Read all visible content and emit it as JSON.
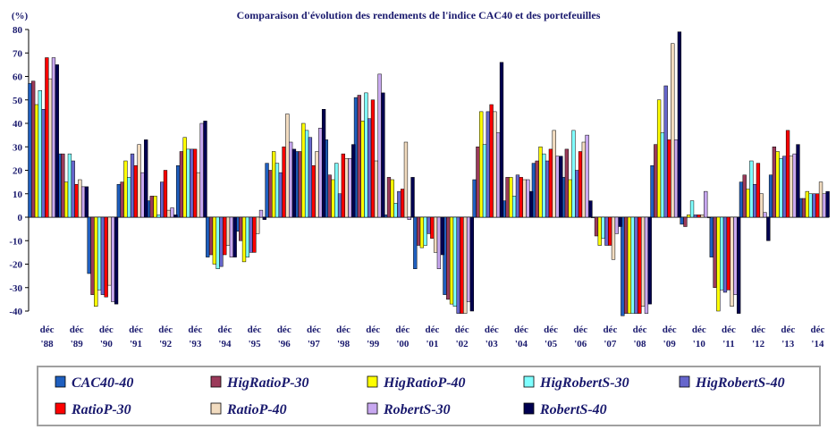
{
  "chart_data": {
    "type": "bar",
    "title": "Comparaison d'évolution des rendements de l'indice CAC40 et des portefeuilles",
    "ylabel": "(%)",
    "ylim": [
      -40,
      80
    ],
    "yticks": [
      80,
      70,
      60,
      50,
      40,
      30,
      20,
      10,
      0,
      -10,
      -20,
      -30,
      -40
    ],
    "grid": false,
    "legend_position": "bottom",
    "categories": [
      [
        "déc",
        "'88"
      ],
      [
        "déc",
        "'89"
      ],
      [
        "déc",
        "'90"
      ],
      [
        "déc",
        "'91"
      ],
      [
        "déc",
        "'92"
      ],
      [
        "déc",
        "'93"
      ],
      [
        "déc",
        "'94"
      ],
      [
        "déc",
        "'95"
      ],
      [
        "déc",
        "'96"
      ],
      [
        "déc",
        "'97"
      ],
      [
        "déc",
        "'98"
      ],
      [
        "déc",
        "'99"
      ],
      [
        "déc",
        "'00"
      ],
      [
        "déc",
        "'01"
      ],
      [
        "déc",
        "'02"
      ],
      [
        "déc",
        "'03"
      ],
      [
        "déc",
        "'04"
      ],
      [
        "déc",
        "'05"
      ],
      [
        "déc",
        "'06"
      ],
      [
        "déc",
        "'07"
      ],
      [
        "déc",
        "'08"
      ],
      [
        "déc",
        "'09"
      ],
      [
        "déc",
        "'10"
      ],
      [
        "déc",
        "'11"
      ],
      [
        "déc",
        "'12"
      ],
      [
        "déc",
        "'13"
      ],
      [
        "déc",
        "'14"
      ]
    ],
    "series": [
      {
        "name": "CAC40-40",
        "color": "#1f5fbf",
        "values": [
          57,
          27,
          -24,
          14,
          7,
          22,
          -17,
          -6,
          23,
          28,
          33,
          51,
          1,
          -22,
          -33,
          16,
          7,
          23,
          17,
          0,
          -42,
          22,
          -3,
          -17,
          15,
          18,
          8
        ]
      },
      {
        "name": "HigRatioP-30",
        "color": "#9b3a5a",
        "values": [
          58,
          27,
          -33,
          15,
          9,
          28,
          -16,
          -10,
          20,
          28,
          18,
          52,
          17,
          -12,
          -35,
          30,
          17,
          24,
          29,
          -8,
          -41,
          31,
          -4,
          -30,
          18,
          30,
          8
        ]
      },
      {
        "name": "HigRatioP-40",
        "color": "#ffff00",
        "values": [
          48,
          15,
          -38,
          24,
          9,
          34,
          -20,
          -19,
          28,
          40,
          16,
          41,
          16,
          -13,
          -37,
          45,
          17,
          30,
          16,
          -12,
          -41,
          50,
          1,
          -40,
          12,
          28,
          11
        ]
      },
      {
        "name": "HigRobertS-30",
        "color": "#7fffff",
        "values": [
          54,
          27,
          -31,
          17,
          1,
          29,
          -22,
          -17,
          23,
          37,
          23,
          53,
          6,
          -12,
          -38,
          31,
          9,
          27,
          37,
          -9,
          -41,
          36,
          7,
          -31,
          24,
          25,
          10
        ]
      },
      {
        "name": "HigRobertS-40",
        "color": "#6666cc",
        "values": [
          46,
          24,
          -33,
          27,
          15,
          29,
          -21,
          -15,
          19,
          34,
          10,
          42,
          11,
          -7,
          -41,
          45,
          18,
          24,
          20,
          -12,
          -41,
          56,
          1,
          -32,
          14,
          26,
          10
        ]
      },
      {
        "name": "RatioP-30",
        "color": "#ff0000",
        "values": [
          68,
          14,
          -34,
          22,
          20,
          29,
          -16,
          -15,
          30,
          22,
          27,
          50,
          12,
          -9,
          -41,
          48,
          17,
          29,
          28,
          -12,
          -41,
          33,
          1,
          -31,
          23,
          37,
          10
        ]
      },
      {
        "name": "RatioP-40",
        "color": "#f2dcc0",
        "values": [
          59,
          16,
          -29,
          31,
          3,
          19,
          -12,
          -7,
          44,
          28,
          25,
          24,
          32,
          -15,
          -41,
          45,
          16,
          37,
          32,
          -18,
          -38,
          74,
          1,
          -38,
          10,
          26,
          15
        ]
      },
      {
        "name": "RobertS-30",
        "color": "#c8a8f0",
        "values": [
          68,
          13,
          -36,
          19,
          4,
          40,
          -17,
          3,
          32,
          38,
          25,
          61,
          -1,
          -22,
          -36,
          36,
          16,
          26,
          35,
          -7,
          -41,
          33,
          11,
          -33,
          2,
          27,
          10
        ]
      },
      {
        "name": "RobertS-40",
        "color": "#000050",
        "values": [
          65,
          13,
          -37,
          33,
          1,
          41,
          -17,
          -1,
          29,
          46,
          31,
          53,
          17,
          -16,
          -40,
          66,
          11,
          26,
          7,
          -4,
          -37,
          79,
          0,
          -41,
          -10,
          31,
          11
        ]
      }
    ]
  }
}
